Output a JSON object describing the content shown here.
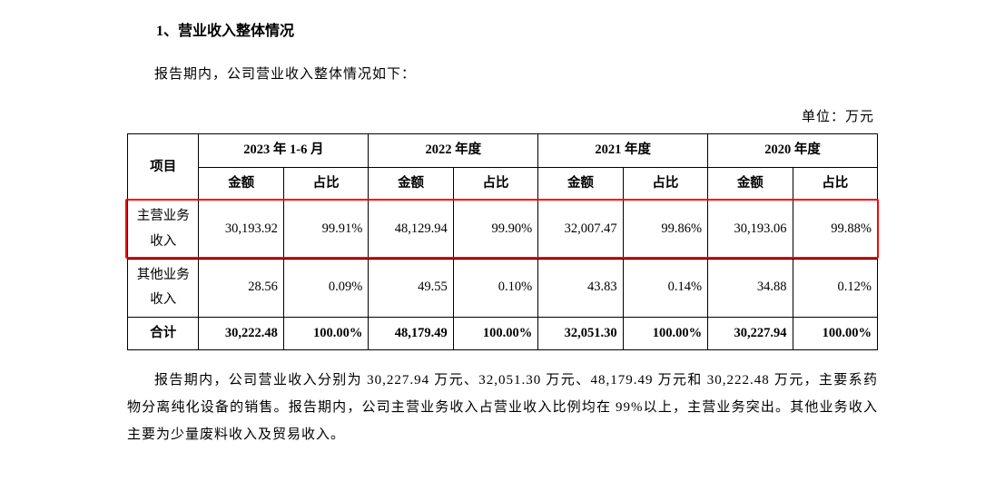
{
  "section_title": "1、营业收入整体情况",
  "intro_text": "报告期内，公司营业收入整体情况如下：",
  "unit_label": "单位：万元",
  "table": {
    "header_item": "项目",
    "periods": [
      "2023 年 1-6 月",
      "2022 年度",
      "2021 年度",
      "2020 年度"
    ],
    "sub_amount": "金额",
    "sub_ratio": "占比",
    "rows": [
      {
        "label": "主营业务收入",
        "values": [
          "30,193.92",
          "99.91%",
          "48,129.94",
          "99.90%",
          "32,007.47",
          "99.86%",
          "30,193.06",
          "99.88%"
        ],
        "highlight": true
      },
      {
        "label": "其他业务收入",
        "values": [
          "28.56",
          "0.09%",
          "49.55",
          "0.10%",
          "43.83",
          "0.14%",
          "34.88",
          "0.12%"
        ],
        "highlight": false
      },
      {
        "label": "合计",
        "values": [
          "30,222.48",
          "100.00%",
          "48,179.49",
          "100.00%",
          "32,051.30",
          "100.00%",
          "30,227.94",
          "100.00%"
        ],
        "bold": true
      }
    ]
  },
  "body_text": "报告期内，公司营业收入分别为 30,227.94 万元、32,051.30 万元、48,179.49 万元和 30,222.48 万元，主要系药物分离纯化设备的销售。报告期内，公司主营业务收入占营业收入比例均在 99%以上，主营业务突出。其他业务收入主要为少量废料收入及贸易收入。",
  "highlight_color": "#ff0000"
}
